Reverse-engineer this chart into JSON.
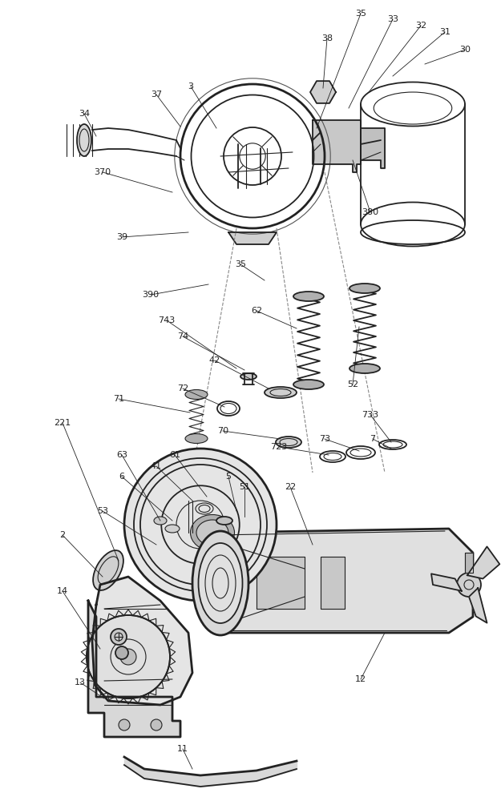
{
  "bg_color": "#ffffff",
  "line_color": "#222222",
  "fig_width": 6.25,
  "fig_height": 10.0,
  "dpi": 100
}
